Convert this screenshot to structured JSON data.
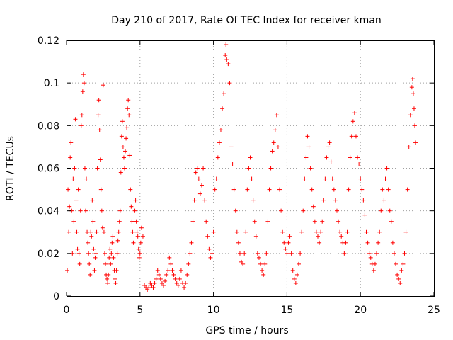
{
  "chart_data": {
    "type": "scatter",
    "title": "Day 210 of 2017, Rate Of TEC Index for receiver kman",
    "xlabel": "GPS time / hours",
    "ylabel": "ROTI / TECUs",
    "xlim": [
      0,
      25
    ],
    "ylim": [
      0,
      0.12
    ],
    "xticks": [
      0,
      5,
      10,
      15,
      20,
      25
    ],
    "yticks": [
      0,
      0.02,
      0.04,
      0.06,
      0.08,
      0.1,
      0.12
    ],
    "grid": true,
    "marker": "plus",
    "color": "#ff0000",
    "points": [
      [
        0.05,
        0.012
      ],
      [
        0.1,
        0.05
      ],
      [
        0.15,
        0.03
      ],
      [
        0.2,
        0.042
      ],
      [
        0.25,
        0.065
      ],
      [
        0.3,
        0.072
      ],
      [
        0.35,
        0.04
      ],
      [
        0.4,
        0.02
      ],
      [
        0.45,
        0.055
      ],
      [
        0.5,
        0.035
      ],
      [
        0.55,
        0.06
      ],
      [
        0.6,
        0.083
      ],
      [
        0.65,
        0.045
      ],
      [
        0.7,
        0.03
      ],
      [
        0.75,
        0.022
      ],
      [
        0.8,
        0.05
      ],
      [
        0.85,
        0.02
      ],
      [
        0.9,
        0.015
      ],
      [
        0.95,
        0.04
      ],
      [
        1.0,
        0.08
      ],
      [
        1.05,
        0.085
      ],
      [
        1.1,
        0.096
      ],
      [
        1.15,
        0.104
      ],
      [
        1.2,
        0.1
      ],
      [
        1.25,
        0.06
      ],
      [
        1.3,
        0.04
      ],
      [
        1.35,
        0.055
      ],
      [
        1.4,
        0.03
      ],
      [
        1.45,
        0.025
      ],
      [
        1.5,
        0.02
      ],
      [
        1.55,
        0.015
      ],
      [
        1.6,
        0.01
      ],
      [
        1.65,
        0.03
      ],
      [
        1.7,
        0.028
      ],
      [
        1.75,
        0.045
      ],
      [
        1.8,
        0.035
      ],
      [
        1.85,
        0.022
      ],
      [
        1.9,
        0.012
      ],
      [
        1.95,
        0.018
      ],
      [
        2.0,
        0.02
      ],
      [
        2.05,
        0.03
      ],
      [
        2.1,
        0.06
      ],
      [
        2.15,
        0.085
      ],
      [
        2.2,
        0.092
      ],
      [
        2.25,
        0.078
      ],
      [
        2.3,
        0.064
      ],
      [
        2.35,
        0.05
      ],
      [
        2.4,
        0.04
      ],
      [
        2.45,
        0.032
      ],
      [
        2.5,
        0.099
      ],
      [
        2.55,
        0.03
      ],
      [
        2.6,
        0.02
      ],
      [
        2.65,
        0.015
      ],
      [
        2.7,
        0.01
      ],
      [
        2.75,
        0.008
      ],
      [
        2.8,
        0.006
      ],
      [
        2.85,
        0.01
      ],
      [
        2.9,
        0.018
      ],
      [
        2.95,
        0.022
      ],
      [
        3.0,
        0.015
      ],
      [
        3.05,
        0.02
      ],
      [
        3.1,
        0.025
      ],
      [
        3.15,
        0.028
      ],
      [
        3.2,
        0.018
      ],
      [
        3.25,
        0.012
      ],
      [
        3.3,
        0.008
      ],
      [
        3.35,
        0.006
      ],
      [
        3.4,
        0.012
      ],
      [
        3.45,
        0.02
      ],
      [
        3.5,
        0.026
      ],
      [
        3.55,
        0.03
      ],
      [
        3.6,
        0.035
      ],
      [
        3.65,
        0.04
      ],
      [
        3.7,
        0.058
      ],
      [
        3.75,
        0.075
      ],
      [
        3.8,
        0.082
      ],
      [
        3.85,
        0.07
      ],
      [
        3.9,
        0.065
      ],
      [
        3.95,
        0.06
      ],
      [
        4.0,
        0.068
      ],
      [
        4.05,
        0.074
      ],
      [
        4.1,
        0.079
      ],
      [
        4.15,
        0.088
      ],
      [
        4.2,
        0.092
      ],
      [
        4.25,
        0.085
      ],
      [
        4.3,
        0.066
      ],
      [
        4.35,
        0.05
      ],
      [
        4.4,
        0.042
      ],
      [
        4.45,
        0.035
      ],
      [
        4.5,
        0.03
      ],
      [
        4.55,
        0.025
      ],
      [
        4.6,
        0.035
      ],
      [
        4.65,
        0.04
      ],
      [
        4.7,
        0.045
      ],
      [
        4.75,
        0.035
      ],
      [
        4.8,
        0.03
      ],
      [
        4.85,
        0.028
      ],
      [
        4.9,
        0.022
      ],
      [
        4.95,
        0.018
      ],
      [
        5.0,
        0.02
      ],
      [
        5.05,
        0.025
      ],
      [
        5.1,
        0.032
      ],
      [
        5.2,
        0.028
      ],
      [
        5.3,
        0.005
      ],
      [
        5.4,
        0.004
      ],
      [
        5.5,
        0.003
      ],
      [
        5.6,
        0.004
      ],
      [
        5.7,
        0.006
      ],
      [
        5.8,
        0.005
      ],
      [
        5.9,
        0.004
      ],
      [
        6.0,
        0.006
      ],
      [
        6.1,
        0.008
      ],
      [
        6.2,
        0.012
      ],
      [
        6.3,
        0.01
      ],
      [
        6.4,
        0.008
      ],
      [
        6.5,
        0.006
      ],
      [
        6.6,
        0.005
      ],
      [
        6.7,
        0.007
      ],
      [
        6.8,
        0.01
      ],
      [
        6.9,
        0.012
      ],
      [
        7.0,
        0.018
      ],
      [
        7.1,
        0.015
      ],
      [
        7.2,
        0.012
      ],
      [
        7.3,
        0.01
      ],
      [
        7.4,
        0.008
      ],
      [
        7.5,
        0.006
      ],
      [
        7.6,
        0.005
      ],
      [
        7.7,
        0.008
      ],
      [
        7.8,
        0.012
      ],
      [
        7.9,
        0.006
      ],
      [
        8.0,
        0.004
      ],
      [
        8.1,
        0.006
      ],
      [
        8.2,
        0.01
      ],
      [
        8.3,
        0.015
      ],
      [
        8.4,
        0.02
      ],
      [
        8.5,
        0.025
      ],
      [
        8.6,
        0.035
      ],
      [
        8.7,
        0.045
      ],
      [
        8.8,
        0.058
      ],
      [
        8.9,
        0.06
      ],
      [
        9.0,
        0.055
      ],
      [
        9.1,
        0.048
      ],
      [
        9.2,
        0.052
      ],
      [
        9.3,
        0.06
      ],
      [
        9.4,
        0.045
      ],
      [
        9.5,
        0.035
      ],
      [
        9.6,
        0.028
      ],
      [
        9.7,
        0.022
      ],
      [
        9.8,
        0.018
      ],
      [
        9.9,
        0.02
      ],
      [
        10.0,
        0.03
      ],
      [
        10.1,
        0.05
      ],
      [
        10.2,
        0.055
      ],
      [
        10.3,
        0.065
      ],
      [
        10.4,
        0.072
      ],
      [
        10.5,
        0.078
      ],
      [
        10.6,
        0.088
      ],
      [
        10.7,
        0.095
      ],
      [
        10.8,
        0.113
      ],
      [
        10.85,
        0.118
      ],
      [
        10.9,
        0.111
      ],
      [
        11.0,
        0.109
      ],
      [
        11.1,
        0.1
      ],
      [
        11.2,
        0.07
      ],
      [
        11.3,
        0.062
      ],
      [
        11.4,
        0.05
      ],
      [
        11.5,
        0.04
      ],
      [
        11.6,
        0.03
      ],
      [
        11.7,
        0.025
      ],
      [
        11.8,
        0.02
      ],
      [
        11.9,
        0.016
      ],
      [
        12.0,
        0.015
      ],
      [
        12.1,
        0.02
      ],
      [
        12.2,
        0.03
      ],
      [
        12.3,
        0.05
      ],
      [
        12.4,
        0.06
      ],
      [
        12.5,
        0.065
      ],
      [
        12.6,
        0.055
      ],
      [
        12.7,
        0.045
      ],
      [
        12.8,
        0.035
      ],
      [
        12.9,
        0.028
      ],
      [
        13.0,
        0.02
      ],
      [
        13.1,
        0.018
      ],
      [
        13.2,
        0.015
      ],
      [
        13.3,
        0.012
      ],
      [
        13.4,
        0.01
      ],
      [
        13.5,
        0.015
      ],
      [
        13.6,
        0.02
      ],
      [
        13.7,
        0.035
      ],
      [
        13.8,
        0.05
      ],
      [
        13.9,
        0.06
      ],
      [
        14.0,
        0.068
      ],
      [
        14.1,
        0.072
      ],
      [
        14.2,
        0.078
      ],
      [
        14.3,
        0.085
      ],
      [
        14.4,
        0.07
      ],
      [
        14.5,
        0.05
      ],
      [
        14.6,
        0.04
      ],
      [
        14.7,
        0.03
      ],
      [
        14.8,
        0.025
      ],
      [
        14.9,
        0.022
      ],
      [
        15.0,
        0.02
      ],
      [
        15.1,
        0.025
      ],
      [
        15.2,
        0.028
      ],
      [
        15.3,
        0.02
      ],
      [
        15.4,
        0.012
      ],
      [
        15.5,
        0.008
      ],
      [
        15.6,
        0.006
      ],
      [
        15.7,
        0.01
      ],
      [
        15.8,
        0.015
      ],
      [
        15.9,
        0.02
      ],
      [
        16.0,
        0.03
      ],
      [
        16.1,
        0.04
      ],
      [
        16.2,
        0.055
      ],
      [
        16.3,
        0.065
      ],
      [
        16.4,
        0.075
      ],
      [
        16.5,
        0.07
      ],
      [
        16.6,
        0.06
      ],
      [
        16.7,
        0.05
      ],
      [
        16.8,
        0.042
      ],
      [
        16.9,
        0.035
      ],
      [
        17.0,
        0.03
      ],
      [
        17.1,
        0.028
      ],
      [
        17.2,
        0.025
      ],
      [
        17.3,
        0.03
      ],
      [
        17.4,
        0.035
      ],
      [
        17.5,
        0.045
      ],
      [
        17.6,
        0.055
      ],
      [
        17.7,
        0.065
      ],
      [
        17.8,
        0.07
      ],
      [
        17.9,
        0.072
      ],
      [
        18.0,
        0.063
      ],
      [
        18.1,
        0.055
      ],
      [
        18.2,
        0.05
      ],
      [
        18.3,
        0.045
      ],
      [
        18.4,
        0.04
      ],
      [
        18.5,
        0.035
      ],
      [
        18.6,
        0.03
      ],
      [
        18.7,
        0.028
      ],
      [
        18.8,
        0.025
      ],
      [
        18.9,
        0.02
      ],
      [
        19.0,
        0.025
      ],
      [
        19.1,
        0.03
      ],
      [
        19.2,
        0.05
      ],
      [
        19.3,
        0.065
      ],
      [
        19.4,
        0.075
      ],
      [
        19.5,
        0.082
      ],
      [
        19.6,
        0.086
      ],
      [
        19.7,
        0.075
      ],
      [
        19.8,
        0.065
      ],
      [
        19.9,
        0.062
      ],
      [
        20.0,
        0.055
      ],
      [
        20.1,
        0.05
      ],
      [
        20.2,
        0.045
      ],
      [
        20.3,
        0.038
      ],
      [
        20.4,
        0.03
      ],
      [
        20.5,
        0.025
      ],
      [
        20.6,
        0.02
      ],
      [
        20.7,
        0.018
      ],
      [
        20.8,
        0.015
      ],
      [
        20.9,
        0.012
      ],
      [
        21.0,
        0.015
      ],
      [
        21.1,
        0.02
      ],
      [
        21.2,
        0.025
      ],
      [
        21.3,
        0.03
      ],
      [
        21.4,
        0.04
      ],
      [
        21.5,
        0.05
      ],
      [
        21.6,
        0.045
      ],
      [
        21.7,
        0.055
      ],
      [
        21.8,
        0.06
      ],
      [
        21.9,
        0.05
      ],
      [
        22.0,
        0.04
      ],
      [
        22.1,
        0.035
      ],
      [
        22.2,
        0.025
      ],
      [
        22.3,
        0.02
      ],
      [
        22.4,
        0.015
      ],
      [
        22.5,
        0.01
      ],
      [
        22.6,
        0.008
      ],
      [
        22.7,
        0.006
      ],
      [
        22.8,
        0.012
      ],
      [
        22.9,
        0.015
      ],
      [
        23.0,
        0.02
      ],
      [
        23.1,
        0.03
      ],
      [
        23.2,
        0.05
      ],
      [
        23.3,
        0.07
      ],
      [
        23.4,
        0.085
      ],
      [
        23.5,
        0.098
      ],
      [
        23.55,
        0.102
      ],
      [
        23.6,
        0.095
      ],
      [
        23.65,
        0.088
      ],
      [
        23.7,
        0.08
      ],
      [
        23.75,
        0.072
      ]
    ]
  }
}
